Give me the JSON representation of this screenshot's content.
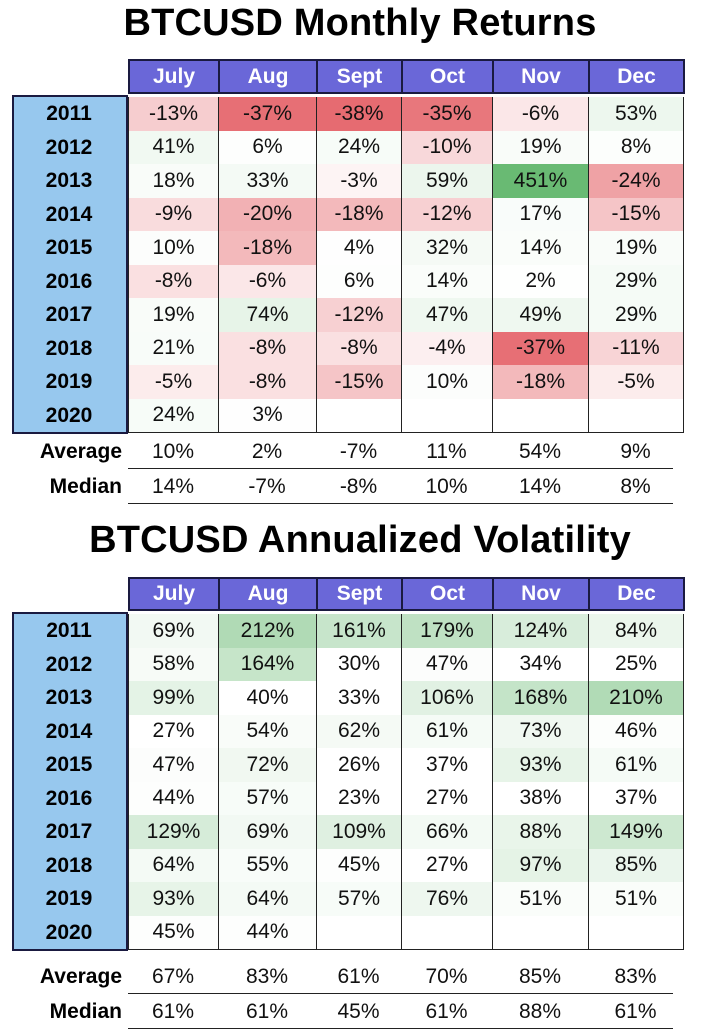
{
  "chart_data": [
    {
      "type": "table",
      "title": "BTCUSD Monthly Returns",
      "unit": "%",
      "columns": [
        "July",
        "Aug",
        "Sept",
        "Oct",
        "Nov",
        "Dec"
      ],
      "rows": [
        {
          "year": "2011",
          "values": [
            "-13%",
            "-37%",
            "-38%",
            "-35%",
            "-6%",
            "53%"
          ],
          "numbers": [
            -13,
            -37,
            -38,
            -35,
            -6,
            53
          ]
        },
        {
          "year": "2012",
          "values": [
            "41%",
            "6%",
            "24%",
            "-10%",
            "19%",
            "8%"
          ],
          "numbers": [
            41,
            6,
            24,
            -10,
            19,
            8
          ]
        },
        {
          "year": "2013",
          "values": [
            "18%",
            "33%",
            "-3%",
            "59%",
            "451%",
            "-24%"
          ],
          "numbers": [
            18,
            33,
            -3,
            59,
            451,
            -24
          ]
        },
        {
          "year": "2014",
          "values": [
            "-9%",
            "-20%",
            "-18%",
            "-12%",
            "17%",
            "-15%"
          ],
          "numbers": [
            -9,
            -20,
            -18,
            -12,
            17,
            -15
          ]
        },
        {
          "year": "2015",
          "values": [
            "10%",
            "-18%",
            "4%",
            "32%",
            "14%",
            "19%"
          ],
          "numbers": [
            10,
            -18,
            4,
            32,
            14,
            19
          ]
        },
        {
          "year": "2016",
          "values": [
            "-8%",
            "-6%",
            "6%",
            "14%",
            "2%",
            "29%"
          ],
          "numbers": [
            -8,
            -6,
            6,
            14,
            2,
            29
          ]
        },
        {
          "year": "2017",
          "values": [
            "19%",
            "74%",
            "-12%",
            "47%",
            "49%",
            "29%"
          ],
          "numbers": [
            19,
            74,
            -12,
            47,
            49,
            29
          ]
        },
        {
          "year": "2018",
          "values": [
            "21%",
            "-8%",
            "-8%",
            "-4%",
            "-37%",
            "-11%"
          ],
          "numbers": [
            21,
            -8,
            -8,
            -4,
            -37,
            -11
          ]
        },
        {
          "year": "2019",
          "values": [
            "-5%",
            "-8%",
            "-15%",
            "10%",
            "-18%",
            "-5%"
          ],
          "numbers": [
            -5,
            -8,
            -15,
            10,
            -18,
            -5
          ]
        },
        {
          "year": "2020",
          "values": [
            "24%",
            "3%",
            "",
            "",
            "",
            ""
          ],
          "numbers": [
            24,
            3,
            null,
            null,
            null,
            null
          ]
        }
      ],
      "summary": [
        {
          "label": "Average",
          "values": [
            "10%",
            "2%",
            "-7%",
            "11%",
            "54%",
            "9%"
          ]
        },
        {
          "label": "Median",
          "values": [
            "14%",
            "-7%",
            "-8%",
            "10%",
            "14%",
            "8%"
          ]
        }
      ]
    },
    {
      "type": "table",
      "title": "BTCUSD Annualized Volatility",
      "unit": "%",
      "columns": [
        "July",
        "Aug",
        "Sept",
        "Oct",
        "Nov",
        "Dec"
      ],
      "rows": [
        {
          "year": "2011",
          "values": [
            "69%",
            "212%",
            "161%",
            "179%",
            "124%",
            "84%"
          ],
          "numbers": [
            69,
            212,
            161,
            179,
            124,
            84
          ]
        },
        {
          "year": "2012",
          "values": [
            "58%",
            "164%",
            "30%",
            "47%",
            "34%",
            "25%"
          ],
          "numbers": [
            58,
            164,
            30,
            47,
            34,
            25
          ]
        },
        {
          "year": "2013",
          "values": [
            "99%",
            "40%",
            "33%",
            "106%",
            "168%",
            "210%"
          ],
          "numbers": [
            99,
            40,
            33,
            106,
            168,
            210
          ]
        },
        {
          "year": "2014",
          "values": [
            "27%",
            "54%",
            "62%",
            "61%",
            "73%",
            "46%"
          ],
          "numbers": [
            27,
            54,
            62,
            61,
            73,
            46
          ]
        },
        {
          "year": "2015",
          "values": [
            "47%",
            "72%",
            "26%",
            "37%",
            "93%",
            "61%"
          ],
          "numbers": [
            47,
            72,
            26,
            37,
            93,
            61
          ]
        },
        {
          "year": "2016",
          "values": [
            "44%",
            "57%",
            "23%",
            "27%",
            "38%",
            "37%"
          ],
          "numbers": [
            44,
            57,
            23,
            27,
            38,
            37
          ]
        },
        {
          "year": "2017",
          "values": [
            "129%",
            "69%",
            "109%",
            "66%",
            "88%",
            "149%"
          ],
          "numbers": [
            129,
            69,
            109,
            66,
            88,
            149
          ]
        },
        {
          "year": "2018",
          "values": [
            "64%",
            "55%",
            "45%",
            "27%",
            "97%",
            "85%"
          ],
          "numbers": [
            64,
            55,
            45,
            27,
            97,
            85
          ]
        },
        {
          "year": "2019",
          "values": [
            "93%",
            "64%",
            "57%",
            "76%",
            "51%",
            "51%"
          ],
          "numbers": [
            93,
            64,
            57,
            76,
            51,
            51
          ]
        },
        {
          "year": "2020",
          "values": [
            "45%",
            "44%",
            "",
            "",
            "",
            ""
          ],
          "numbers": [
            45,
            44,
            null,
            null,
            null,
            null
          ]
        }
      ],
      "summary": [
        {
          "label": "Average",
          "values": [
            "67%",
            "83%",
            "61%",
            "70%",
            "85%",
            "83%"
          ]
        },
        {
          "label": "Median",
          "values": [
            "61%",
            "61%",
            "45%",
            "61%",
            "88%",
            "61%"
          ]
        }
      ]
    }
  ],
  "colors": {
    "header_bg": "#6a67d8",
    "year_bg": "#97c8ee",
    "negative": "#e0484f",
    "positive": "#4fae5a"
  }
}
